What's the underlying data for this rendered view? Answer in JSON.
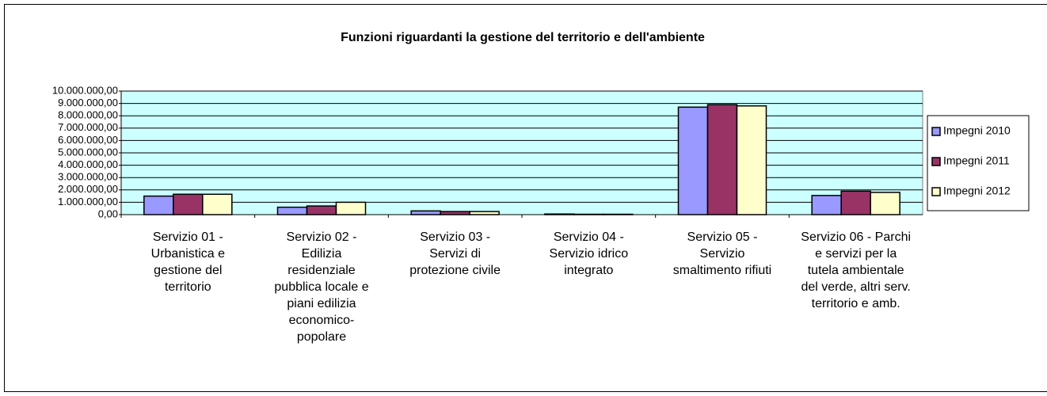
{
  "chart_data": {
    "type": "bar",
    "title": "Funzioni riguardanti la gestione del territorio e dell'ambiente",
    "categories": [
      "Servizio 01 - Urbanistica e gestione del territorio",
      "Servizio 02 - Edilizia residenziale pubblica locale e piani edilizia economico-popolare",
      "Servizio 03 - Servizi di protezione civile",
      "Servizio 04 - Servizio idrico integrato",
      "Servizio 05 - Servizio smaltimento rifiuti",
      "Servizio 06 - Parchi e servizi per la tutela ambientale del verde, altri serv. territorio e amb."
    ],
    "series": [
      {
        "name": "Impegni 2010",
        "color": "#9999ff",
        "values": [
          1500000,
          600000,
          300000,
          50000,
          8700000,
          1550000
        ]
      },
      {
        "name": "Impegni 2011",
        "color": "#993366",
        "values": [
          1650000,
          700000,
          250000,
          30000,
          8900000,
          1900000
        ]
      },
      {
        "name": "Impegni 2012",
        "color": "#ffffcc",
        "values": [
          1650000,
          1000000,
          250000,
          30000,
          8800000,
          1800000
        ]
      }
    ],
    "ylim": [
      0,
      10000000
    ],
    "yticks": [
      {
        "value": 0,
        "label": "0,00"
      },
      {
        "value": 1000000,
        "label": "1.000.000,00"
      },
      {
        "value": 2000000,
        "label": "2.000.000,00"
      },
      {
        "value": 3000000,
        "label": "3.000.000,00"
      },
      {
        "value": 4000000,
        "label": "4.000.000,00"
      },
      {
        "value": 5000000,
        "label": "5.000.000,00"
      },
      {
        "value": 6000000,
        "label": "6.000.000,00"
      },
      {
        "value": 7000000,
        "label": "7.000.000,00"
      },
      {
        "value": 8000000,
        "label": "8.000.000,00"
      },
      {
        "value": 9000000,
        "label": "9.000.000,00"
      },
      {
        "value": 10000000,
        "label": "10.000.000,00"
      }
    ],
    "grid": true,
    "legend": "right",
    "plot_background": "#ccffff"
  }
}
